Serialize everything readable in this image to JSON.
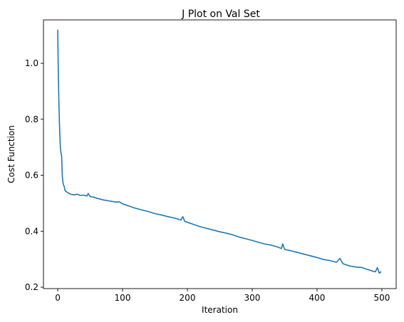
{
  "chart_data": {
    "type": "line",
    "title": "J Plot on Val Set",
    "xlabel": "Iteration",
    "ylabel": "Cost Function",
    "xlim": [
      -22,
      522
    ],
    "ylim": [
      0.195,
      1.155
    ],
    "xticks": [
      0,
      100,
      200,
      300,
      400,
      500
    ],
    "xtick_labels": [
      "0",
      "100",
      "200",
      "300",
      "400",
      "500"
    ],
    "yticks": [
      0.2,
      0.4,
      0.6,
      0.8,
      1.0
    ],
    "ytick_labels": [
      "0.2",
      "0.4",
      "0.6",
      "0.8",
      "1.0"
    ],
    "grid": false,
    "legend": "none",
    "series": [
      {
        "color": "#1f77b4",
        "x": [
          0,
          1,
          2,
          3,
          4,
          5,
          6,
          7,
          8,
          9,
          10,
          11,
          12,
          13,
          14,
          15,
          17,
          20,
          25,
          30,
          35,
          40,
          45,
          47,
          50,
          55,
          60,
          70,
          80,
          90,
          95,
          100,
          110,
          120,
          130,
          140,
          150,
          160,
          170,
          180,
          190,
          193,
          196,
          200,
          210,
          220,
          230,
          240,
          250,
          260,
          270,
          280,
          290,
          300,
          310,
          320,
          330,
          340,
          345,
          347,
          350,
          360,
          370,
          380,
          390,
          400,
          410,
          420,
          430,
          435,
          440,
          450,
          460,
          470,
          475,
          480,
          485,
          490,
          493,
          496,
          499
        ],
        "y": [
          1.12,
          0.95,
          0.84,
          0.76,
          0.7,
          0.68,
          0.67,
          0.6,
          0.575,
          0.565,
          0.56,
          0.548,
          0.543,
          0.542,
          0.54,
          0.538,
          0.536,
          0.532,
          0.53,
          0.532,
          0.528,
          0.529,
          0.526,
          0.535,
          0.524,
          0.522,
          0.518,
          0.512,
          0.508,
          0.504,
          0.505,
          0.498,
          0.49,
          0.482,
          0.476,
          0.47,
          0.463,
          0.458,
          0.452,
          0.447,
          0.44,
          0.452,
          0.435,
          0.432,
          0.424,
          0.416,
          0.41,
          0.404,
          0.398,
          0.393,
          0.387,
          0.379,
          0.373,
          0.367,
          0.36,
          0.354,
          0.35,
          0.343,
          0.338,
          0.355,
          0.335,
          0.33,
          0.324,
          0.318,
          0.312,
          0.306,
          0.299,
          0.295,
          0.289,
          0.303,
          0.284,
          0.276,
          0.272,
          0.27,
          0.265,
          0.262,
          0.258,
          0.255,
          0.27,
          0.25,
          0.256
        ]
      }
    ]
  }
}
